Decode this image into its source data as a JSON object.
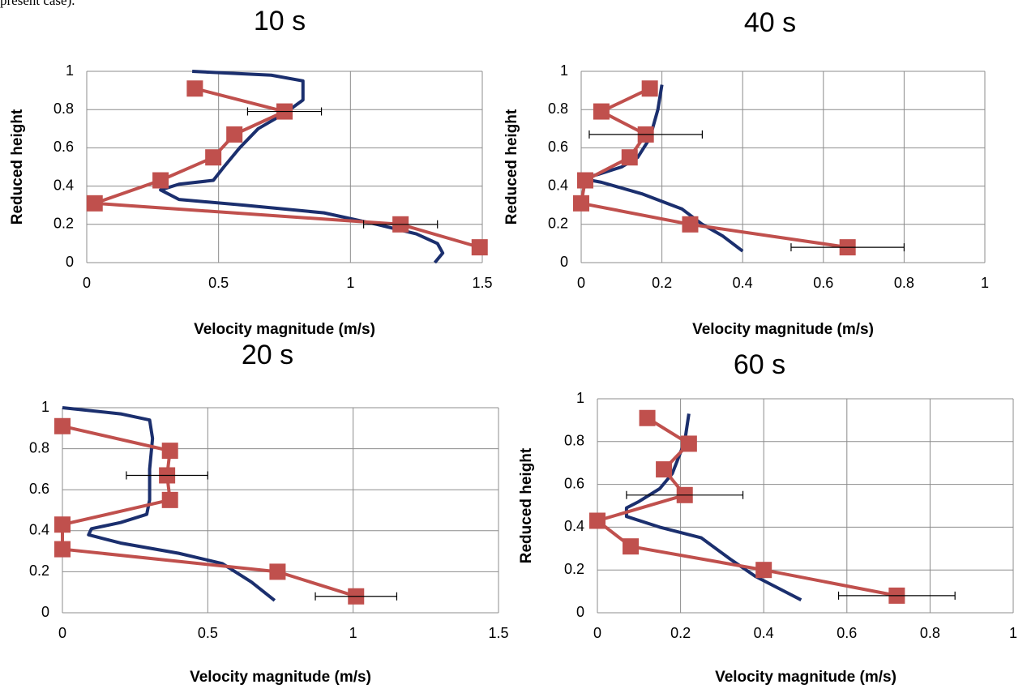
{
  "caption": "present case).",
  "chart_data": [
    {
      "type": "line",
      "title": "10 s",
      "x_label": "Velocity magnitude (m/s)",
      "y_label": "Reduced height",
      "xlim": [
        0,
        1.5
      ],
      "xticks": [
        0,
        0.5,
        1,
        1.5
      ],
      "ylim": [
        0,
        1
      ],
      "yticks": [
        0,
        0.2,
        0.4,
        0.6,
        0.8,
        1
      ],
      "grid": true,
      "series": [
        {
          "color": "#1b2f6e",
          "x": [
            0.4,
            0.7,
            0.82,
            0.82,
            0.75,
            0.65,
            0.58,
            0.52,
            0.48,
            0.35,
            0.28,
            0.35,
            0.6,
            0.9,
            1.1,
            1.25,
            1.33,
            1.35,
            1.32
          ],
          "values": [
            1.0,
            0.98,
            0.95,
            0.85,
            0.78,
            0.7,
            0.6,
            0.5,
            0.43,
            0.41,
            0.38,
            0.33,
            0.3,
            0.26,
            0.2,
            0.15,
            0.1,
            0.05,
            0.0
          ]
        },
        {
          "color": "#c0504d",
          "marker": "square",
          "x": [
            0.41,
            0.75,
            0.56,
            0.48,
            0.28,
            0.03,
            1.19,
            1.49
          ],
          "values": [
            0.91,
            0.79,
            0.67,
            0.55,
            0.43,
            0.31,
            0.2,
            0.08
          ],
          "xerr": [
            null,
            0.14,
            null,
            null,
            null,
            null,
            0.14,
            null
          ]
        }
      ]
    },
    {
      "type": "line",
      "title": "40 s",
      "x_label": "Velocity magnitude (m/s)",
      "y_label": "Reduced height",
      "xlim": [
        0,
        1
      ],
      "xticks": [
        0,
        0.2,
        0.4,
        0.6,
        0.8,
        1
      ],
      "ylim": [
        0,
        1
      ],
      "yticks": [
        0,
        0.2,
        0.4,
        0.6,
        0.8,
        1
      ],
      "grid": true,
      "series": [
        {
          "color": "#1b2f6e",
          "x": [
            0.2,
            0.19,
            0.17,
            0.14,
            0.1,
            0.04,
            0.0,
            0.05,
            0.15,
            0.25,
            0.3,
            0.35,
            0.4
          ],
          "values": [
            0.93,
            0.8,
            0.65,
            0.55,
            0.5,
            0.46,
            0.44,
            0.42,
            0.36,
            0.28,
            0.2,
            0.14,
            0.06
          ]
        },
        {
          "color": "#c0504d",
          "marker": "square",
          "x": [
            0.17,
            0.05,
            0.16,
            0.12,
            0.01,
            0.0,
            0.27,
            0.66
          ],
          "values": [
            0.91,
            0.79,
            0.67,
            0.55,
            0.43,
            0.31,
            0.2,
            0.08
          ],
          "xerr": [
            null,
            null,
            0.14,
            null,
            null,
            null,
            null,
            0.14
          ]
        }
      ]
    },
    {
      "type": "line",
      "title": "20 s",
      "x_label": "Velocity magnitude (m/s)",
      "xlim": [
        0,
        1.5
      ],
      "xticks": [
        0,
        0.5,
        1,
        1.5
      ],
      "ylim": [
        0,
        1
      ],
      "yticks": [
        0,
        0.2,
        0.4,
        0.6,
        0.8,
        1
      ],
      "grid": true,
      "series": [
        {
          "color": "#1b2f6e",
          "x": [
            0.0,
            0.2,
            0.3,
            0.31,
            0.3,
            0.3,
            0.29,
            0.2,
            0.1,
            0.09,
            0.2,
            0.4,
            0.55,
            0.65,
            0.73
          ],
          "values": [
            1.0,
            0.97,
            0.94,
            0.85,
            0.7,
            0.55,
            0.48,
            0.44,
            0.41,
            0.38,
            0.34,
            0.29,
            0.24,
            0.15,
            0.06
          ]
        },
        {
          "color": "#c0504d",
          "marker": "square",
          "x": [
            0.0,
            0.37,
            0.36,
            0.37,
            0.0,
            0.0,
            0.74,
            1.01
          ],
          "values": [
            0.91,
            0.79,
            0.67,
            0.55,
            0.43,
            0.31,
            0.2,
            0.08
          ],
          "xerr": [
            null,
            null,
            0.14,
            null,
            null,
            null,
            null,
            0.14
          ]
        }
      ]
    },
    {
      "type": "line",
      "title": "60 s",
      "x_label": "Velocity magnitude (m/s)",
      "y_label": "Reduced height",
      "xlim": [
        0,
        1
      ],
      "xticks": [
        0,
        0.2,
        0.4,
        0.6,
        0.8,
        1
      ],
      "ylim": [
        0,
        1
      ],
      "yticks": [
        0,
        0.2,
        0.4,
        0.6,
        0.8,
        1
      ],
      "grid": true,
      "series": [
        {
          "color": "#1b2f6e",
          "x": [
            0.22,
            0.21,
            0.18,
            0.15,
            0.1,
            0.07,
            0.07,
            0.15,
            0.25,
            0.32,
            0.38,
            0.45,
            0.49
          ],
          "values": [
            0.93,
            0.8,
            0.65,
            0.58,
            0.52,
            0.49,
            0.45,
            0.4,
            0.35,
            0.25,
            0.17,
            0.1,
            0.06
          ]
        },
        {
          "color": "#c0504d",
          "marker": "square",
          "x": [
            0.12,
            0.22,
            0.16,
            0.21,
            0.0,
            0.08,
            0.4,
            0.72
          ],
          "values": [
            0.91,
            0.79,
            0.67,
            0.55,
            0.43,
            0.31,
            0.2,
            0.08
          ],
          "xerr": [
            null,
            null,
            null,
            0.14,
            null,
            null,
            null,
            0.14
          ]
        }
      ]
    }
  ]
}
